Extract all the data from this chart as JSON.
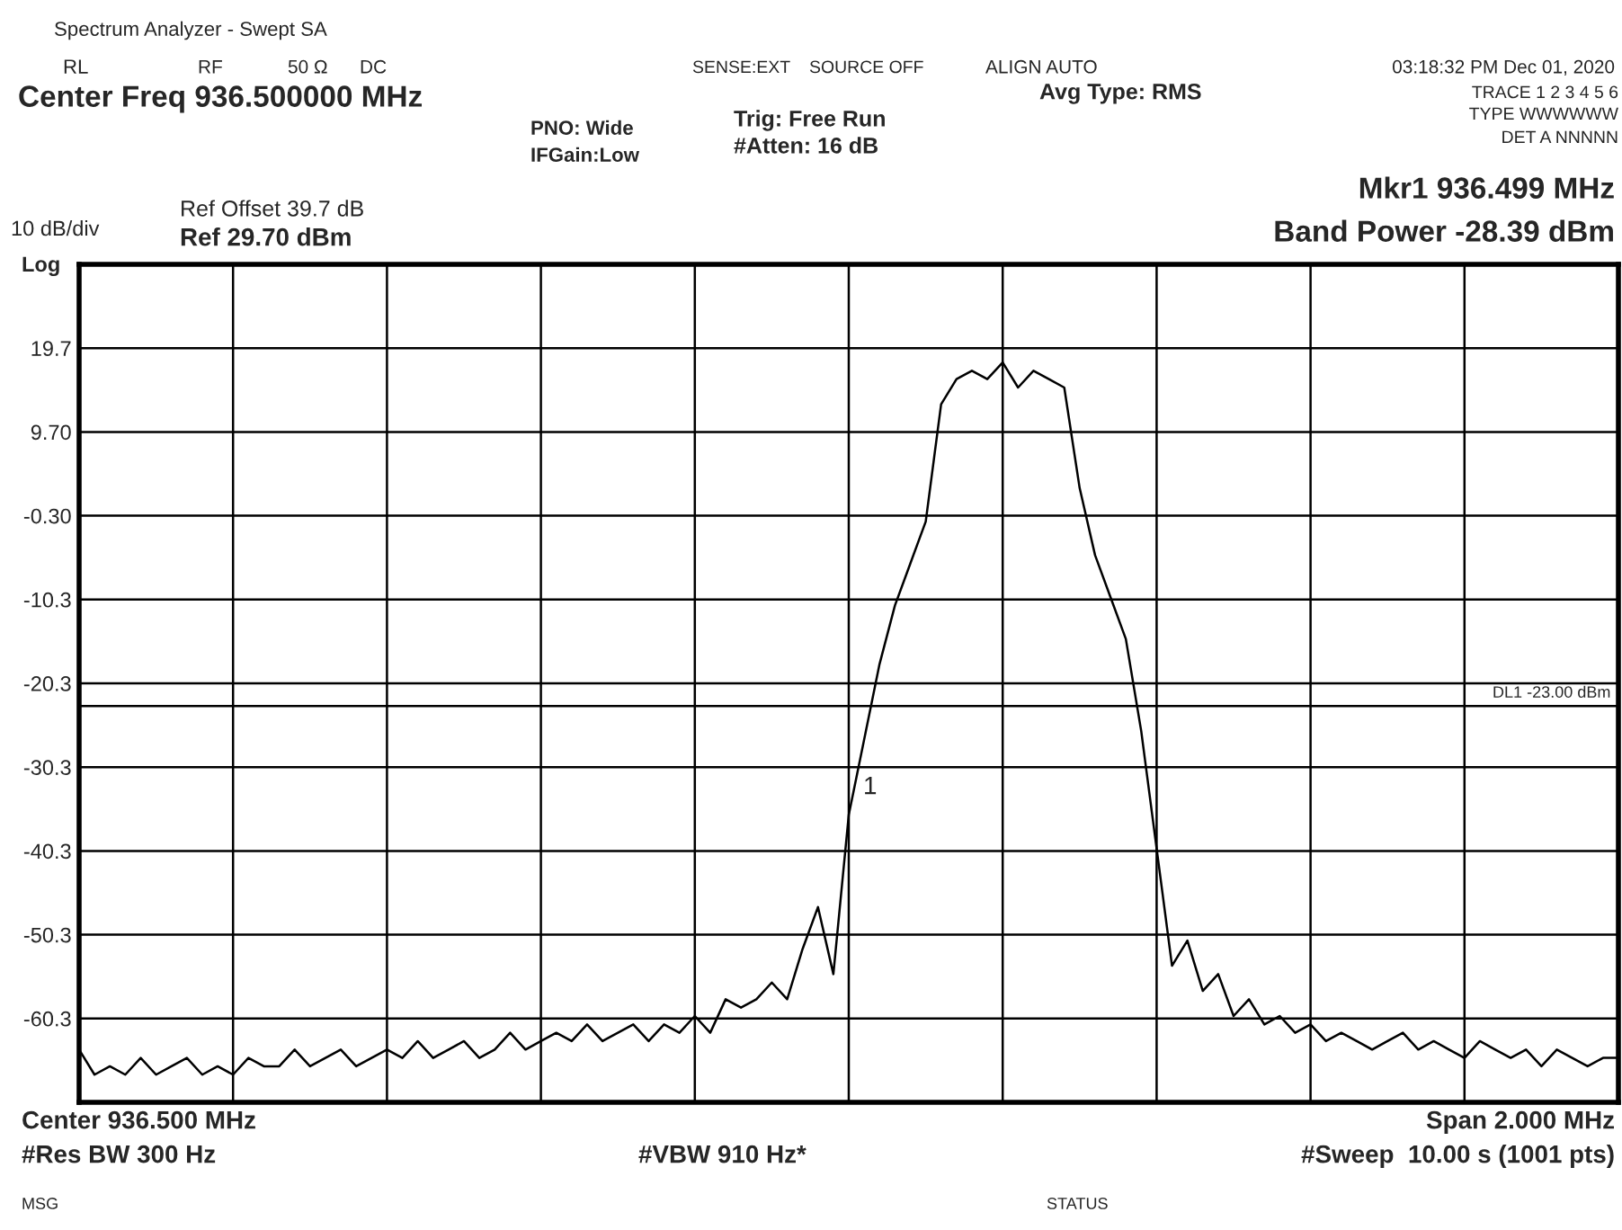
{
  "chart_data": {
    "type": "line",
    "title": "Spectrum Analyzer - Swept SA",
    "categories": [
      null,
      null,
      null,
      null,
      null,
      null,
      null,
      null,
      null,
      null,
      null,
      null,
      null,
      null,
      null,
      null,
      null,
      null,
      null,
      null,
      null,
      null,
      null,
      null,
      null,
      null,
      null,
      null,
      null,
      null,
      null,
      null,
      null,
      null,
      null,
      null,
      null,
      null,
      null,
      null,
      null,
      null,
      null,
      null,
      null,
      null,
      null,
      null,
      null,
      null,
      null,
      null,
      null,
      null,
      null,
      null,
      null,
      null,
      null,
      null,
      null,
      null,
      null,
      null,
      null,
      null,
      null,
      null,
      null,
      null,
      null,
      null,
      null,
      null,
      null,
      null,
      null,
      null,
      null,
      null,
      null,
      null,
      null,
      null,
      null,
      null,
      null,
      null,
      null,
      null,
      null,
      null,
      null,
      null,
      null,
      null,
      null,
      null,
      null,
      null,
      null
    ],
    "series": [
      {
        "color": "#000000",
        "values": [
          -64,
          -67,
          -66,
          -67,
          -65,
          -67,
          -66,
          -65,
          -67,
          -66,
          -67,
          -65,
          -66,
          -66,
          -64,
          -66,
          -65,
          -64,
          -66,
          -65,
          -64,
          -65,
          -63,
          -65,
          -64,
          -63,
          -65,
          -64,
          -62,
          -64,
          -63,
          -62,
          -63,
          -61,
          -63,
          -62,
          -61,
          -63,
          -61,
          -62,
          -60,
          -62,
          -58,
          -59,
          -58,
          -56,
          -58,
          -52,
          -47,
          -55,
          -36,
          -27,
          -18,
          -11,
          -6,
          -1,
          13,
          16,
          17,
          16,
          18,
          15,
          17,
          16,
          15,
          3,
          -5,
          -10,
          -15,
          -26,
          -40,
          -54,
          -51,
          -57,
          -55,
          -60,
          -58,
          -61,
          -60,
          -62,
          -61,
          -63,
          -62,
          -63,
          -64,
          -63,
          -62,
          -64,
          -63,
          -64,
          -65,
          -63,
          -64,
          -65,
          -64,
          -66,
          -64,
          -65,
          -66,
          -65,
          -65
        ]
      }
    ],
    "ylim": [
      -70.3,
      29.7
    ],
    "yticks": [
      {
        "value": 29.7,
        "label": null
      },
      19.7,
      {
        "value": 9.7,
        "label": "9.70"
      },
      {
        "value": -0.3,
        "label": "-0.30"
      },
      -10.3,
      -20.3,
      -30.3,
      -40.3,
      -50.3,
      -60.3
    ],
    "grid": true,
    "ref_lines": [
      {
        "axis": "y",
        "value": -23,
        "label": "DL1 -23.00 dBm",
        "color": "#000000"
      }
    ],
    "annotations": [
      "RL",
      "RF",
      "50 Ω",
      "DC",
      "SENSE:EXT",
      "SOURCE OFF",
      "ALIGN AUTO",
      "03:18:32 PM Dec 01, 2020",
      "Center Freq 936.500000 MHz",
      "PNO: Wide",
      "IFGain:Low",
      "Trig: Free Run",
      "#Atten: 16 dB",
      "Avg Type: RMS",
      "TRACE 1 2 3 4 5 6",
      "TYPE WWWWWW",
      "DET A NNNNN",
      "Ref Offset 39.7 dB",
      "Ref 29.70 dBm",
      "10 dB/div",
      "Log",
      "Mkr1 936.499 MHz",
      "Band Power -28.39 dBm",
      "Center 936.500 MHz",
      "Span 2.000 MHz",
      "#Res BW 300 Hz",
      "#VBW 910 Hz*",
      "#Sweep  10.00 s (1001 pts)",
      "MSG",
      "STATUS",
      "1"
    ]
  }
}
